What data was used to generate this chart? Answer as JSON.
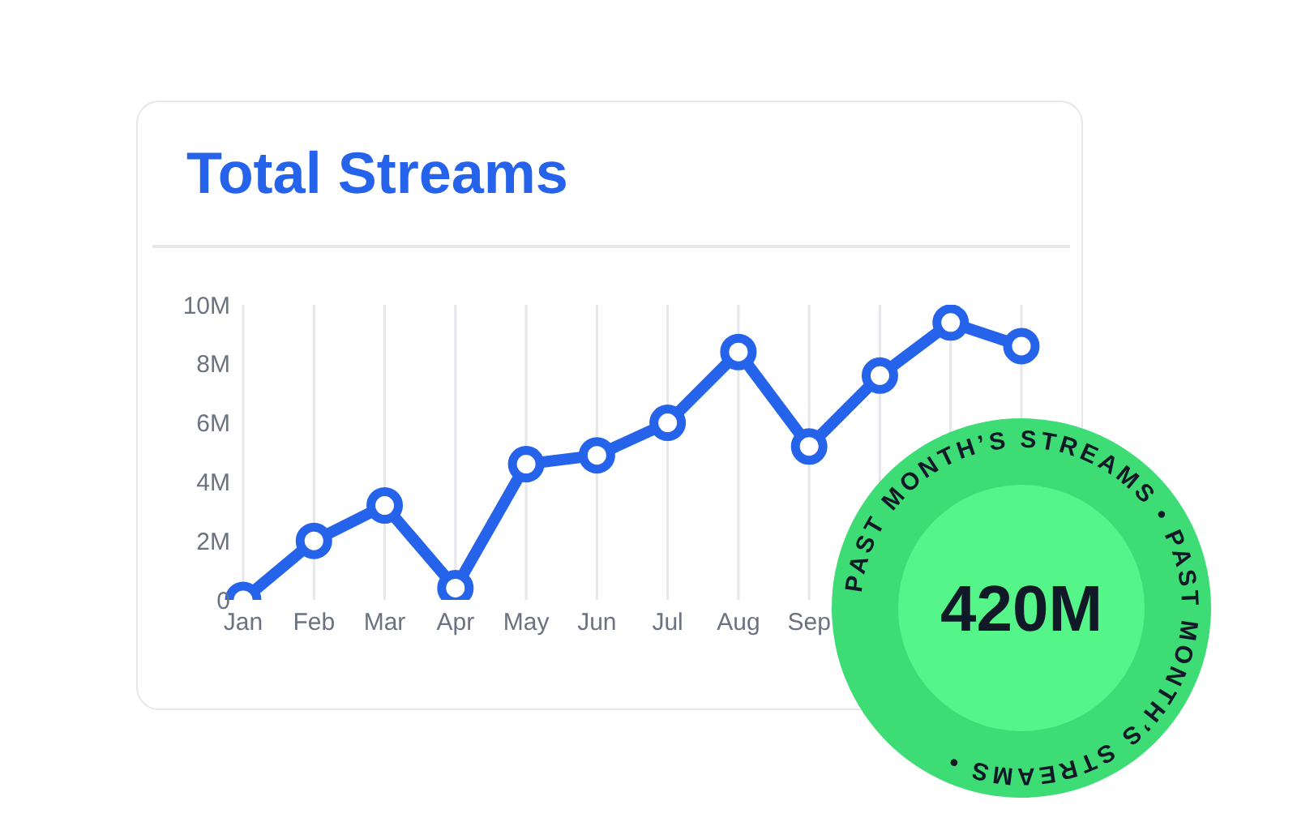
{
  "chart_data": {
    "type": "line",
    "title": "Total Streams",
    "categories": [
      "Jan",
      "Feb",
      "Mar",
      "Apr",
      "May",
      "Jun",
      "Jul",
      "Aug",
      "Sep",
      null,
      null,
      null
    ],
    "series": [
      {
        "color": "#2563eb",
        "values": [
          0,
          2,
          3.2,
          0.4,
          4.6,
          4.9,
          6,
          8.4,
          5.2,
          7.6,
          9.4,
          8.6
        ]
      }
    ],
    "ylim": [
      0,
      10
    ],
    "yticks": [
      {
        "value": 0,
        "label": "0"
      },
      {
        "value": 2,
        "label": "2M"
      },
      {
        "value": 4,
        "label": "4M"
      },
      {
        "value": 6,
        "label": "6M"
      },
      {
        "value": 8,
        "label": "8M"
      },
      {
        "value": 10,
        "label": "10M"
      }
    ],
    "grid": true,
    "marker": "circle",
    "line_style": "solid",
    "annotations": [
      "PAST MONTH’S STREAMS • PAST MONTH’S STREAMS •",
      "420M"
    ]
  }
}
